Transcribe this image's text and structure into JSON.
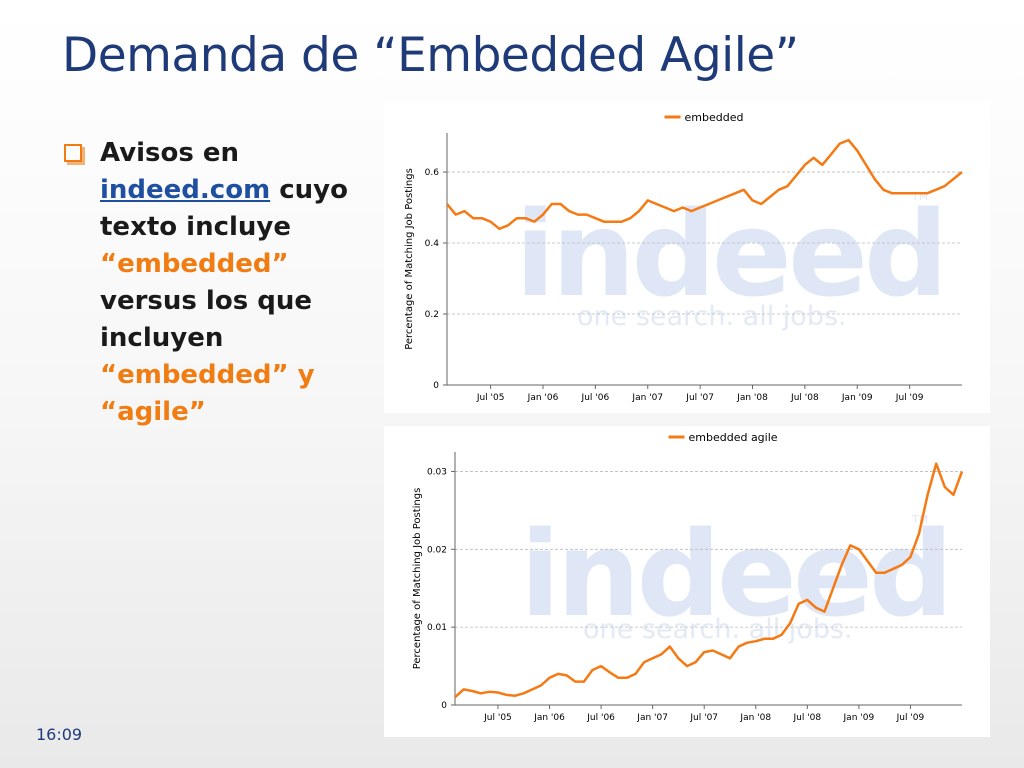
{
  "slide": {
    "title": "Demanda de “Embedded Agile”",
    "bullet": {
      "text_1": "Avisos en",
      "link": "indeed.com",
      "text_2": "cuyo texto incluye",
      "highlight_1": "“embedded”",
      "text_3": "versus los que incluyen",
      "highlight_2": "“embedded” y “agile”"
    },
    "footer_time": "16:09"
  },
  "chart_data": [
    {
      "type": "line",
      "legend": "top",
      "y_label": "Percentage of Matching Job Postings",
      "watermark": {
        "logo": "indeed",
        "tagline": "one search. all jobs.",
        "mark": "TM"
      },
      "x": [
        "2005-02",
        "2005-03",
        "2005-04",
        "2005-05",
        "2005-06",
        "2005-07",
        "2005-08",
        "2005-09",
        "2005-10",
        "2005-11",
        "2005-12",
        "2006-01",
        "2006-02",
        "2006-03",
        "2006-04",
        "2006-05",
        "2006-06",
        "2006-07",
        "2006-08",
        "2006-09",
        "2006-10",
        "2006-11",
        "2006-12",
        "2007-01",
        "2007-02",
        "2007-03",
        "2007-04",
        "2007-05",
        "2007-06",
        "2007-07",
        "2007-08",
        "2007-09",
        "2007-10",
        "2007-11",
        "2007-12",
        "2008-01",
        "2008-02",
        "2008-03",
        "2008-04",
        "2008-05",
        "2008-06",
        "2008-07",
        "2008-08",
        "2008-09",
        "2008-10",
        "2008-11",
        "2008-12",
        "2009-01",
        "2009-02",
        "2009-03",
        "2009-04",
        "2009-05",
        "2009-06",
        "2009-07",
        "2009-08",
        "2009-09",
        "2009-10",
        "2009-11",
        "2009-12",
        "2010-01"
      ],
      "xlim": [
        "2005-02",
        "2010-01"
      ],
      "xticks": [
        {
          "value": "2005-07",
          "label": "Jul '05"
        },
        {
          "value": "2006-01",
          "label": "Jan '06"
        },
        {
          "value": "2006-07",
          "label": "Jul '06"
        },
        {
          "value": "2007-01",
          "label": "Jan '07"
        },
        {
          "value": "2007-07",
          "label": "Jul '07"
        },
        {
          "value": "2008-01",
          "label": "Jan '08"
        },
        {
          "value": "2008-07",
          "label": "Jul '08"
        },
        {
          "value": "2009-01",
          "label": "Jan '09"
        },
        {
          "value": "2009-07",
          "label": "Jul '09"
        }
      ],
      "ylim": [
        0,
        0.71
      ],
      "yticks": [
        0,
        0.2,
        0.4,
        0.6
      ],
      "grid": true,
      "series": [
        {
          "name": "embedded",
          "color": "#f57a14",
          "values": [
            0.51,
            0.48,
            0.49,
            0.47,
            0.47,
            0.46,
            0.44,
            0.45,
            0.47,
            0.47,
            0.46,
            0.48,
            0.51,
            0.51,
            0.49,
            0.48,
            0.48,
            0.47,
            0.46,
            0.46,
            0.46,
            0.47,
            0.49,
            0.52,
            0.51,
            0.5,
            0.49,
            0.5,
            0.49,
            0.5,
            0.51,
            0.52,
            0.53,
            0.54,
            0.55,
            0.52,
            0.51,
            0.53,
            0.55,
            0.56,
            0.59,
            0.62,
            0.64,
            0.62,
            0.65,
            0.68,
            0.69,
            0.66,
            0.62,
            0.58,
            0.55,
            0.54,
            0.54,
            0.54,
            0.54,
            0.54,
            0.55,
            0.56,
            0.58,
            0.6
          ]
        }
      ]
    },
    {
      "type": "line",
      "legend": "top",
      "y_label": "Percentage of Matching Job Postings",
      "watermark": {
        "logo": "indeed",
        "tagline": "one search. all jobs.",
        "mark": "TM"
      },
      "x": [
        "2005-02",
        "2005-03",
        "2005-04",
        "2005-05",
        "2005-06",
        "2005-07",
        "2005-08",
        "2005-09",
        "2005-10",
        "2005-11",
        "2005-12",
        "2006-01",
        "2006-02",
        "2006-03",
        "2006-04",
        "2006-05",
        "2006-06",
        "2006-07",
        "2006-08",
        "2006-09",
        "2006-10",
        "2006-11",
        "2006-12",
        "2007-01",
        "2007-02",
        "2007-03",
        "2007-04",
        "2007-05",
        "2007-06",
        "2007-07",
        "2007-08",
        "2007-09",
        "2007-10",
        "2007-11",
        "2007-12",
        "2008-01",
        "2008-02",
        "2008-03",
        "2008-04",
        "2008-05",
        "2008-06",
        "2008-07",
        "2008-08",
        "2008-09",
        "2008-10",
        "2008-11",
        "2008-12",
        "2009-01",
        "2009-02",
        "2009-03",
        "2009-04",
        "2009-05",
        "2009-06",
        "2009-07",
        "2009-08",
        "2009-09",
        "2009-10",
        "2009-11",
        "2009-12",
        "2010-01"
      ],
      "xlim": [
        "2005-02",
        "2010-01"
      ],
      "xticks": [
        {
          "value": "2005-07",
          "label": "Jul '05"
        },
        {
          "value": "2006-01",
          "label": "Jan '06"
        },
        {
          "value": "2006-07",
          "label": "Jul '06"
        },
        {
          "value": "2007-01",
          "label": "Jan '07"
        },
        {
          "value": "2007-07",
          "label": "Jul '07"
        },
        {
          "value": "2008-01",
          "label": "Jan '08"
        },
        {
          "value": "2008-07",
          "label": "Jul '08"
        },
        {
          "value": "2009-01",
          "label": "Jan '09"
        },
        {
          "value": "2009-07",
          "label": "Jul '09"
        }
      ],
      "ylim": [
        0,
        0.0325
      ],
      "yticks": [
        0,
        0.01,
        0.02,
        0.03
      ],
      "grid": true,
      "series": [
        {
          "name": "embedded agile",
          "color": "#f57a14",
          "values": [
            0.001,
            0.002,
            0.0018,
            0.0015,
            0.0017,
            0.0016,
            0.0013,
            0.0012,
            0.0015,
            0.002,
            0.0025,
            0.0035,
            0.004,
            0.0038,
            0.003,
            0.003,
            0.0045,
            0.005,
            0.0042,
            0.0035,
            0.0035,
            0.004,
            0.0055,
            0.006,
            0.0065,
            0.0075,
            0.006,
            0.005,
            0.0055,
            0.0068,
            0.007,
            0.0065,
            0.006,
            0.0075,
            0.008,
            0.0082,
            0.0085,
            0.0085,
            0.009,
            0.0105,
            0.013,
            0.0135,
            0.0125,
            0.012,
            0.015,
            0.018,
            0.0205,
            0.02,
            0.0185,
            0.017,
            0.017,
            0.0175,
            0.018,
            0.019,
            0.022,
            0.027,
            0.031,
            0.028,
            0.027,
            0.03
          ]
        }
      ]
    }
  ]
}
